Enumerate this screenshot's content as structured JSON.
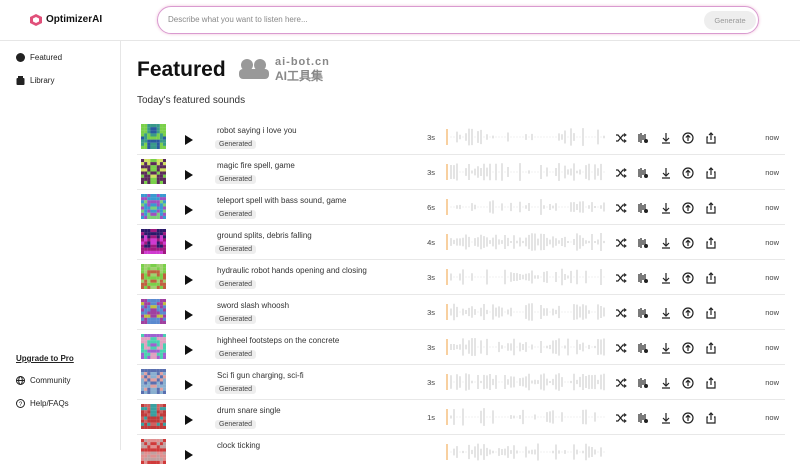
{
  "header": {
    "logo": "OptimizerAI",
    "search_placeholder": "Describe what you want to listen here...",
    "generate_button": "Generate"
  },
  "sidebar": {
    "nav": [
      "Featured",
      "Library"
    ],
    "upgrade": "Upgrade to Pro",
    "links": [
      "Community",
      "Help/FAQs"
    ]
  },
  "main": {
    "title": "Featured",
    "watermark": [
      "ai-bot.cn",
      "AI工具集"
    ],
    "subtitle": "Today's featured sounds",
    "rows": [
      {
        "name": "robot saying i love you",
        "tag": "Generated",
        "duration": "3s",
        "time": "now"
      },
      {
        "name": "magic fire spell, game",
        "tag": "Generated",
        "duration": "3s",
        "time": "now"
      },
      {
        "name": "teleport spell with bass sound, game",
        "tag": "Generated",
        "duration": "6s",
        "time": "now"
      },
      {
        "name": "ground splits, debris falling",
        "tag": "Generated",
        "duration": "4s",
        "time": "now"
      },
      {
        "name": "hydraulic robot hands opening and closing",
        "tag": "Generated",
        "duration": "3s",
        "time": "now"
      },
      {
        "name": "sword slash whoosh",
        "tag": "Generated",
        "duration": "3s",
        "time": "now"
      },
      {
        "name": "highheel footsteps on the concrete",
        "tag": "Generated",
        "duration": "3s",
        "time": "now"
      },
      {
        "name": "Sci fi gun charging, sci-fi",
        "tag": "Generated",
        "duration": "3s",
        "time": "now"
      },
      {
        "name": "drum snare single",
        "tag": "Generated",
        "duration": "1s",
        "time": "now"
      },
      {
        "name": "clock ticking"
      }
    ]
  }
}
